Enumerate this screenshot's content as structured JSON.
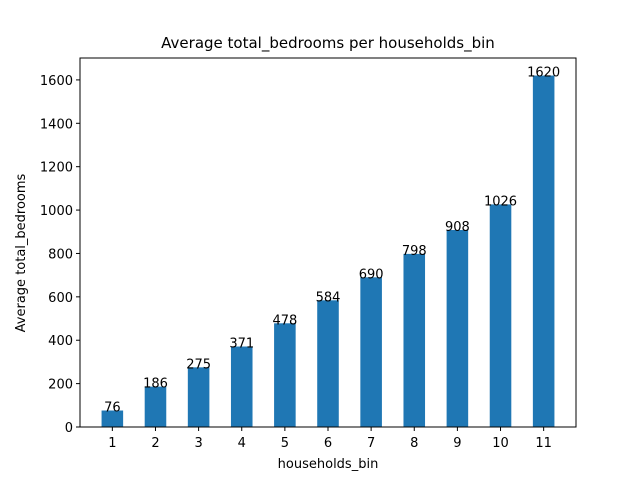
{
  "chart_data": {
    "type": "bar",
    "title": "Average total_bedrooms per households_bin",
    "xlabel": "households_bin",
    "ylabel": "Average total_bedrooms",
    "categories": [
      "1",
      "2",
      "3",
      "4",
      "5",
      "6",
      "7",
      "8",
      "9",
      "10",
      "11"
    ],
    "values": [
      76,
      186,
      275,
      371,
      478,
      584,
      690,
      798,
      908,
      1026,
      1620
    ],
    "data_labels": [
      "76",
      "186",
      "275",
      "371",
      "478",
      "584",
      "690",
      "798",
      "908",
      "1026",
      "1620"
    ],
    "ylim": [
      0,
      1701
    ],
    "yticks": [
      0,
      200,
      400,
      600,
      800,
      1000,
      1200,
      1400,
      1600
    ],
    "ytick_labels": [
      "0",
      "200",
      "400",
      "600",
      "800",
      "1000",
      "1200",
      "1400",
      "1600"
    ],
    "grid": false,
    "legend": "none",
    "bar_color": "#1f77b4"
  }
}
